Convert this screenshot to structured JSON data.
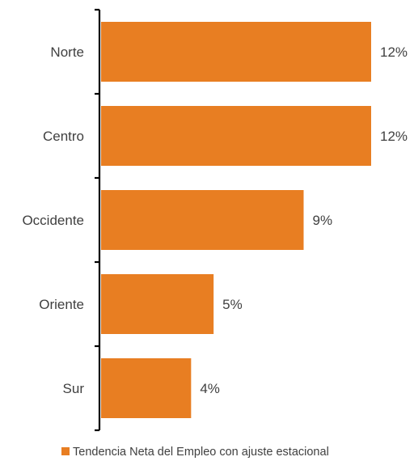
{
  "chart_data": {
    "type": "bar",
    "orientation": "horizontal",
    "categories": [
      "Norte",
      "Centro",
      "Occidente",
      "Oriente",
      "Sur"
    ],
    "series": [
      {
        "name": "Tendencia Neta del Empleo con ajuste estacional",
        "values": [
          12,
          12,
          9,
          5,
          4
        ],
        "value_labels": [
          "12%",
          "12%",
          "9%",
          "5%",
          "4%"
        ],
        "color": "#E87E22"
      }
    ],
    "title": "",
    "xlabel": "",
    "ylabel": "",
    "xlim": [
      0,
      12
    ],
    "grid": false,
    "legend": "bottom",
    "axis_color": "#000000",
    "text_color": "#404040"
  }
}
